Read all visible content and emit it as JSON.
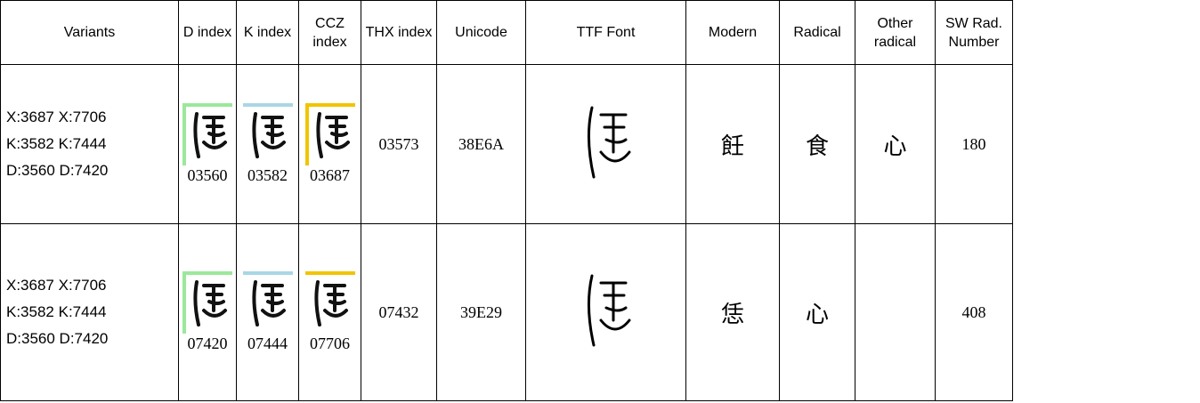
{
  "table": {
    "header": [
      "Variants",
      "D index",
      "K index",
      "CCZ index",
      "THX index",
      "Unicode",
      "TTF Font",
      "Modern",
      "Radical",
      "Other radical",
      "SW Rad. Number"
    ],
    "rows": [
      {
        "variants": [
          "X:3687 X:7706",
          "K:3582 K:7444",
          "D:3560 D:7420"
        ],
        "d_index": "03560",
        "k_index": "03582",
        "ccz_index": "03687",
        "thx_index": "03573",
        "unicode": "38E6A",
        "modern": "飪",
        "radical": "食",
        "other_radical": "心",
        "sw_number": "180"
      },
      {
        "variants": [
          "X:3687 X:7706",
          "K:3582 K:7444",
          "D:3560 D:7420"
        ],
        "d_index": "07420",
        "k_index": "07444",
        "ccz_index": "07706",
        "thx_index": "07432",
        "unicode": "39E29",
        "modern": "恁",
        "radical": "心",
        "sw_number": "408"
      }
    ]
  }
}
